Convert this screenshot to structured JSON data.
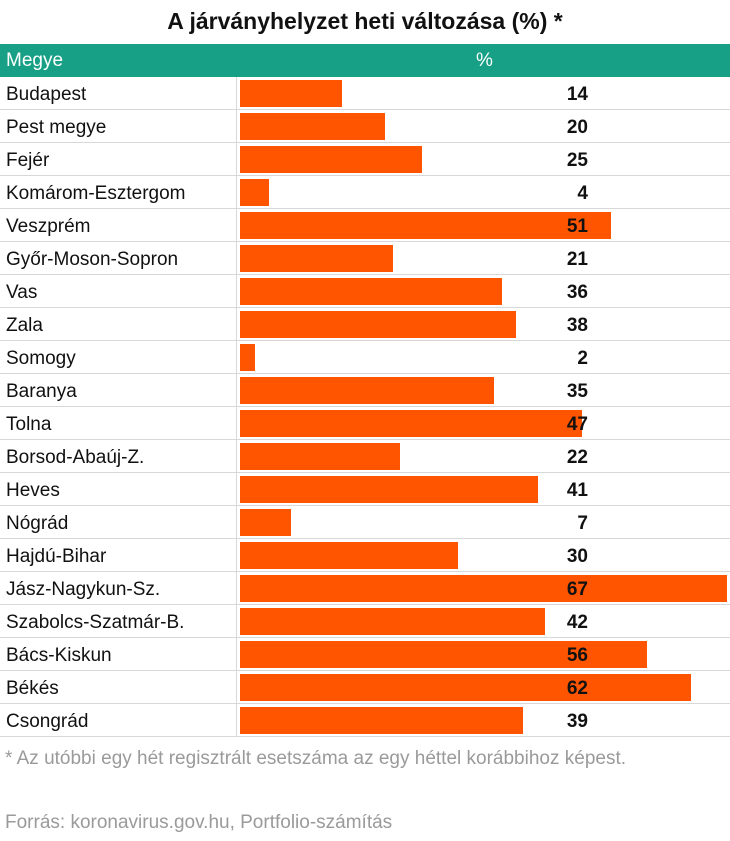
{
  "colors": {
    "header_bg": "#17a085",
    "bar": "#ff5500"
  },
  "header": {
    "county_label": "Megye",
    "percent_label": "%"
  },
  "footnote": "* Az utóbbi egy hét regisztrált esetszáma az egy héttel korábbihoz képest.",
  "source": "Forrás: koronavirus.gov.hu, Portfolio-számítás",
  "chart_data": {
    "type": "bar",
    "orientation": "horizontal",
    "title": "A járványhelyzet heti változása (%) *",
    "xlabel": "%",
    "ylabel": "Megye",
    "xlim": [
      0,
      67
    ],
    "categories": [
      "Budapest",
      "Pest megye",
      "Fejér",
      "Komárom-Esztergom",
      "Veszprém",
      "Győr-Moson-Sopron",
      "Vas",
      "Zala",
      "Somogy",
      "Baranya",
      "Tolna",
      "Borsod-Abaúj-Z.",
      "Heves",
      "Nógrád",
      "Hajdú-Bihar",
      "Jász-Nagykun-Sz.",
      "Szabolcs-Szatmár-B.",
      "Bács-Kiskun",
      "Békés",
      "Csongrád"
    ],
    "values": [
      14,
      20,
      25,
      4,
      51,
      21,
      36,
      38,
      2,
      35,
      47,
      22,
      41,
      7,
      30,
      67,
      42,
      56,
      62,
      39
    ]
  }
}
